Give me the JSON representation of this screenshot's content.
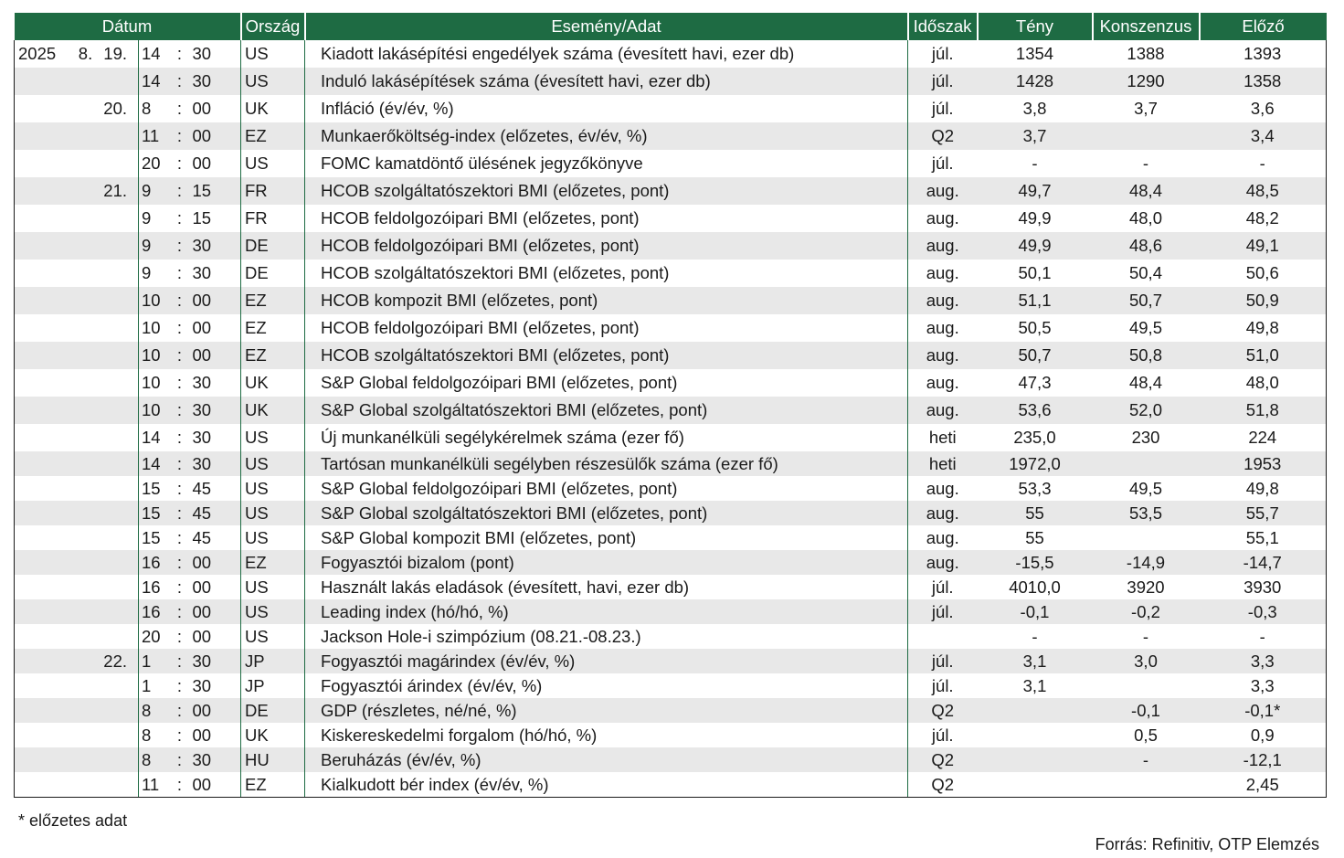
{
  "table": {
    "headers": {
      "date": "Dátum",
      "country": "Ország",
      "event": "Esemény/Adat",
      "period": "Időszak",
      "actual": "Tény",
      "consensus": "Konszenzus",
      "previous": "Előző"
    },
    "rows": [
      {
        "year": "2025",
        "month": "8.",
        "day": "19.",
        "hour": "14",
        "colon": ":",
        "min": "30",
        "country": "US",
        "event": "Kiadott lakásépítési engedélyek száma (évesített havi, ezer db)",
        "period": "júl.",
        "actual": "1354",
        "consensus": "1388",
        "previous": "1393"
      },
      {
        "year": "",
        "month": "",
        "day": "",
        "hour": "14",
        "colon": ":",
        "min": "30",
        "country": "US",
        "event": "Induló lakásépítések száma (évesített havi, ezer db)",
        "period": "júl.",
        "actual": "1428",
        "consensus": "1290",
        "previous": "1358"
      },
      {
        "year": "",
        "month": "",
        "day": "20.",
        "hour": "8",
        "colon": ":",
        "min": "00",
        "country": "UK",
        "event": "Infláció (év/év, %)",
        "period": "júl.",
        "actual": "3,8",
        "consensus": "3,7",
        "previous": "3,6"
      },
      {
        "year": "",
        "month": "",
        "day": "",
        "hour": "11",
        "colon": ":",
        "min": "00",
        "country": "EZ",
        "event": "Munkaerőköltség-index (előzetes, év/év, %)",
        "period": "Q2",
        "actual": "3,7",
        "consensus": "",
        "previous": "3,4"
      },
      {
        "year": "",
        "month": "",
        "day": "",
        "hour": "20",
        "colon": ":",
        "min": "00",
        "country": "US",
        "event": "FOMC kamatdöntő ülésének jegyzőkönyve",
        "period": "júl.",
        "actual": "-",
        "consensus": "-",
        "previous": "-"
      },
      {
        "year": "",
        "month": "",
        "day": "21.",
        "hour": "9",
        "colon": ":",
        "min": "15",
        "country": "FR",
        "event": "HCOB szolgáltatószektori BMI (előzetes, pont)",
        "period": "aug.",
        "actual": "49,7",
        "consensus": "48,4",
        "previous": "48,5"
      },
      {
        "year": "",
        "month": "",
        "day": "",
        "hour": "9",
        "colon": ":",
        "min": "15",
        "country": "FR",
        "event": "HCOB feldolgozóipari BMI (előzetes, pont)",
        "period": "aug.",
        "actual": "49,9",
        "consensus": "48,0",
        "previous": "48,2"
      },
      {
        "year": "",
        "month": "",
        "day": "",
        "hour": "9",
        "colon": ":",
        "min": "30",
        "country": "DE",
        "event": "HCOB feldolgozóipari BMI (előzetes, pont)",
        "period": "aug.",
        "actual": "49,9",
        "consensus": "48,6",
        "previous": "49,1"
      },
      {
        "year": "",
        "month": "",
        "day": "",
        "hour": "9",
        "colon": ":",
        "min": "30",
        "country": "DE",
        "event": "HCOB szolgáltatószektori BMI (előzetes, pont)",
        "period": "aug.",
        "actual": "50,1",
        "consensus": "50,4",
        "previous": "50,6"
      },
      {
        "year": "",
        "month": "",
        "day": "",
        "hour": "10",
        "colon": ":",
        "min": "00",
        "country": "EZ",
        "event": "HCOB kompozit BMI (előzetes, pont)",
        "period": "aug.",
        "actual": "51,1",
        "consensus": "50,7",
        "previous": "50,9"
      },
      {
        "year": "",
        "month": "",
        "day": "",
        "hour": "10",
        "colon": ":",
        "min": "00",
        "country": "EZ",
        "event": "HCOB feldolgozóipari BMI (előzetes, pont)",
        "period": "aug.",
        "actual": "50,5",
        "consensus": "49,5",
        "previous": "49,8"
      },
      {
        "year": "",
        "month": "",
        "day": "",
        "hour": "10",
        "colon": ":",
        "min": "00",
        "country": "EZ",
        "event": "HCOB szolgáltatószektori BMI (előzetes, pont)",
        "period": "aug.",
        "actual": "50,7",
        "consensus": "50,8",
        "previous": "51,0"
      },
      {
        "year": "",
        "month": "",
        "day": "",
        "hour": "10",
        "colon": ":",
        "min": "30",
        "country": "UK",
        "event": "S&P Global feldolgozóipari BMI (előzetes, pont)",
        "period": "aug.",
        "actual": "47,3",
        "consensus": "48,4",
        "previous": "48,0"
      },
      {
        "year": "",
        "month": "",
        "day": "",
        "hour": "10",
        "colon": ":",
        "min": "30",
        "country": "UK",
        "event": "S&P Global szolgáltatószektori BMI (előzetes, pont)",
        "period": "aug.",
        "actual": "53,6",
        "consensus": "52,0",
        "previous": "51,8"
      },
      {
        "year": "",
        "month": "",
        "day": "",
        "hour": "14",
        "colon": ":",
        "min": "30",
        "country": "US",
        "event": "Új munkanélküli segélykérelmek száma (ezer fő)",
        "period": "heti",
        "actual": "235,0",
        "consensus": "230",
        "previous": "224"
      },
      {
        "year": "",
        "month": "",
        "day": "",
        "hour": "14",
        "colon": ":",
        "min": "30",
        "country": "US",
        "event": "Tartósan munkanélküli segélyben részesülők száma (ezer fő)",
        "period": "heti",
        "actual": "1972,0",
        "consensus": "",
        "previous": "1953"
      },
      {
        "year": "",
        "month": "",
        "day": "",
        "hour": "15",
        "colon": ":",
        "min": "45",
        "country": "US",
        "event": "S&P Global feldolgozóipari BMI (előzetes, pont)",
        "period": "aug.",
        "actual": "53,3",
        "consensus": "49,5",
        "previous": "49,8"
      },
      {
        "year": "",
        "month": "",
        "day": "",
        "hour": "15",
        "colon": ":",
        "min": "45",
        "country": "US",
        "event": "S&P Global szolgáltatószektori BMI (előzetes, pont)",
        "period": "aug.",
        "actual": "55",
        "consensus": "53,5",
        "previous": "55,7"
      },
      {
        "year": "",
        "month": "",
        "day": "",
        "hour": "15",
        "colon": ":",
        "min": "45",
        "country": "US",
        "event": "S&P Global kompozit BMI (előzetes, pont)",
        "period": "aug.",
        "actual": "55",
        "consensus": "",
        "previous": "55,1"
      },
      {
        "year": "",
        "month": "",
        "day": "",
        "hour": "16",
        "colon": ":",
        "min": "00",
        "country": "EZ",
        "event": "Fogyasztói bizalom (pont)",
        "period": "aug.",
        "actual": "-15,5",
        "consensus": "-14,9",
        "previous": "-14,7"
      },
      {
        "year": "",
        "month": "",
        "day": "",
        "hour": "16",
        "colon": ":",
        "min": "00",
        "country": "US",
        "event": "Használt lakás eladások (évesített, havi, ezer db)",
        "period": "júl.",
        "actual": "4010,0",
        "consensus": "3920",
        "previous": "3930"
      },
      {
        "year": "",
        "month": "",
        "day": "",
        "hour": "16",
        "colon": ":",
        "min": "00",
        "country": "US",
        "event": "Leading index (hó/hó, %)",
        "period": "júl.",
        "actual": "-0,1",
        "consensus": "-0,2",
        "previous": "-0,3"
      },
      {
        "year": "",
        "month": "",
        "day": "",
        "hour": "20",
        "colon": ":",
        "min": "00",
        "country": "US",
        "event": "Jackson Hole-i szimpózium (08.21.-08.23.)",
        "period": "",
        "actual": "-",
        "consensus": "-",
        "previous": "-"
      },
      {
        "year": "",
        "month": "",
        "day": "22.",
        "hour": "1",
        "colon": ":",
        "min": "30",
        "country": "JP",
        "event": "Fogyasztói magárindex (év/év, %)",
        "period": "júl.",
        "actual": "3,1",
        "consensus": "3,0",
        "previous": "3,3"
      },
      {
        "year": "",
        "month": "",
        "day": "",
        "hour": "1",
        "colon": ":",
        "min": "30",
        "country": "JP",
        "event": "Fogyasztói árindex (év/év, %)",
        "period": "júl.",
        "actual": "3,1",
        "consensus": "",
        "previous": "3,3"
      },
      {
        "year": "",
        "month": "",
        "day": "",
        "hour": "8",
        "colon": ":",
        "min": "00",
        "country": "DE",
        "event": "GDP (részletes, né/né, %)",
        "period": "Q2",
        "actual": "",
        "consensus": "-0,1",
        "previous": "-0,1*"
      },
      {
        "year": "",
        "month": "",
        "day": "",
        "hour": "8",
        "colon": ":",
        "min": "00",
        "country": "UK",
        "event": "Kiskereskedelmi forgalom (hó/hó, %)",
        "period": "júl.",
        "actual": "",
        "consensus": "0,5",
        "previous": "0,9"
      },
      {
        "year": "",
        "month": "",
        "day": "",
        "hour": "8",
        "colon": ":",
        "min": "30",
        "country": "HU",
        "event": "Beruházás (év/év, %)",
        "period": "Q2",
        "actual": "",
        "consensus": "-",
        "previous": "-12,1"
      },
      {
        "year": "",
        "month": "",
        "day": "",
        "hour": "11",
        "colon": ":",
        "min": "00",
        "country": "EZ",
        "event": "Kialkudott bér index (év/év, %)",
        "period": "Q2",
        "actual": "",
        "consensus": "",
        "previous": "2,45"
      }
    ]
  },
  "footnote": "* előzetes adat",
  "source": "Forrás: Refinitiv, OTP Elemzés",
  "colors": {
    "header_bg": "#1e6b43",
    "stripe": "#e8e8e8"
  }
}
